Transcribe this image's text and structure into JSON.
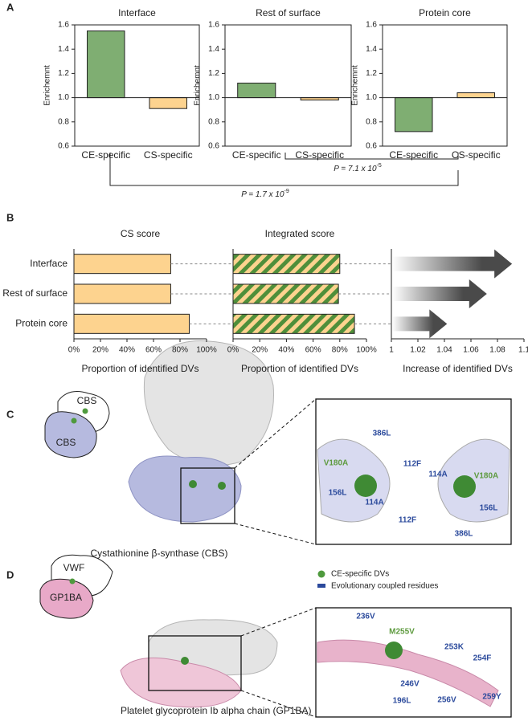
{
  "chart_data": [
    {
      "type": "bar",
      "title": "Interface",
      "ylabel": "Enrichemnt",
      "categories": [
        "CE-specific",
        "CS-specific"
      ],
      "values": [
        1.55,
        0.91
      ],
      "colors": [
        "#7fae72",
        "#fdd38f"
      ],
      "baseline": 1,
      "ylim": [
        0.6,
        1.6
      ],
      "yticks": [
        0.6,
        0.8,
        {
          "value": 1,
          "label": "1.0"
        },
        1.2,
        1.4,
        1.6
      ]
    },
    {
      "type": "bar",
      "title": "Rest of surface",
      "ylabel": "Enrichemnt",
      "categories": [
        "CE-specific",
        "CS-specific"
      ],
      "values": [
        1.12,
        0.98
      ],
      "colors": [
        "#7fae72",
        "#fdd38f"
      ],
      "baseline": 1,
      "ylim": [
        0.6,
        1.6
      ],
      "yticks": [
        0.6,
        0.8,
        {
          "value": 1,
          "label": "1.0"
        },
        1.2,
        1.4,
        1.6
      ]
    },
    {
      "type": "bar",
      "title": "Protein core",
      "ylabel": "Enrichemnt",
      "categories": [
        "CE-specific",
        "CS-specific"
      ],
      "values": [
        0.72,
        1.04
      ],
      "colors": [
        "#7fae72",
        "#fdd38f"
      ],
      "baseline": 1,
      "ylim": [
        0.6,
        1.6
      ],
      "yticks": [
        0.6,
        0.8,
        {
          "value": 1,
          "label": "1.0"
        },
        1.2,
        1.4,
        1.6
      ]
    },
    {
      "type": "hbar",
      "title": "CS score",
      "xlabel": "Proportion of identified DVs",
      "categories": [
        "Interface",
        "Rest of surface",
        "Protein core"
      ],
      "values": [
        73,
        73,
        87
      ],
      "color": "#fdd38f",
      "xlim": [
        0,
        100
      ],
      "xticks": [
        {
          "value": 0,
          "label": "0%"
        },
        {
          "value": 20,
          "label": "20%"
        },
        {
          "value": 40,
          "label": "40%"
        },
        {
          "value": 60,
          "label": "60%"
        },
        {
          "value": 80,
          "label": "80%"
        },
        {
          "value": 100,
          "label": "100%"
        }
      ]
    },
    {
      "type": "hbar",
      "title": "Integrated score",
      "xlabel": "Proportion of identified DVs",
      "values": [
        80,
        79,
        91
      ],
      "color": "#fdd38f",
      "stripe_color": "#4f8f3a",
      "pattern": "striped",
      "xlim": [
        0,
        100
      ],
      "xticks": [
        {
          "value": 0,
          "label": "0%"
        },
        {
          "value": 20,
          "label": "20%"
        },
        {
          "value": 40,
          "label": "40%"
        },
        {
          "value": 60,
          "label": "60%"
        },
        {
          "value": 80,
          "label": "80%"
        },
        {
          "value": 100,
          "label": "100%"
        }
      ]
    },
    {
      "type": "arrow",
      "xlabel": "Increase of identified DVs",
      "values": [
        1.091,
        1.072,
        1.042
      ],
      "color": "#4a4a4a",
      "xlim": [
        1,
        1.1
      ],
      "xticks": [
        1,
        1.02,
        1.04,
        1.06,
        1.08,
        1.1
      ]
    }
  ],
  "figure": {
    "panels": [
      "A",
      "B",
      "C",
      "D"
    ],
    "p_values": [
      {
        "text": "P = 7.1 x 10",
        "exponent": "-5"
      },
      {
        "text": "P = 1.7 x 10",
        "exponent": "-9"
      }
    ],
    "panel_c": {
      "diagram_labels": [
        "CBS",
        "CBS"
      ],
      "caption": "Cystathionine β-synthase (CBS)",
      "residues": [
        "386L",
        "V180A",
        "112F",
        "114A",
        "V180A",
        "156L",
        "114A",
        "156L",
        "112F",
        "386L"
      ]
    },
    "legend": [
      "CE-specific DVs",
      "Evolutionary coupled residues"
    ],
    "panel_d": {
      "diagram_labels": [
        "VWF",
        "GP1BA"
      ],
      "caption": "Platelet glycoprotein Ib alpha chain (GP1BA)",
      "residues": [
        "236V",
        "M255V",
        "253K",
        "254F",
        "246V",
        "196L",
        "256V",
        "259Y"
      ]
    }
  }
}
